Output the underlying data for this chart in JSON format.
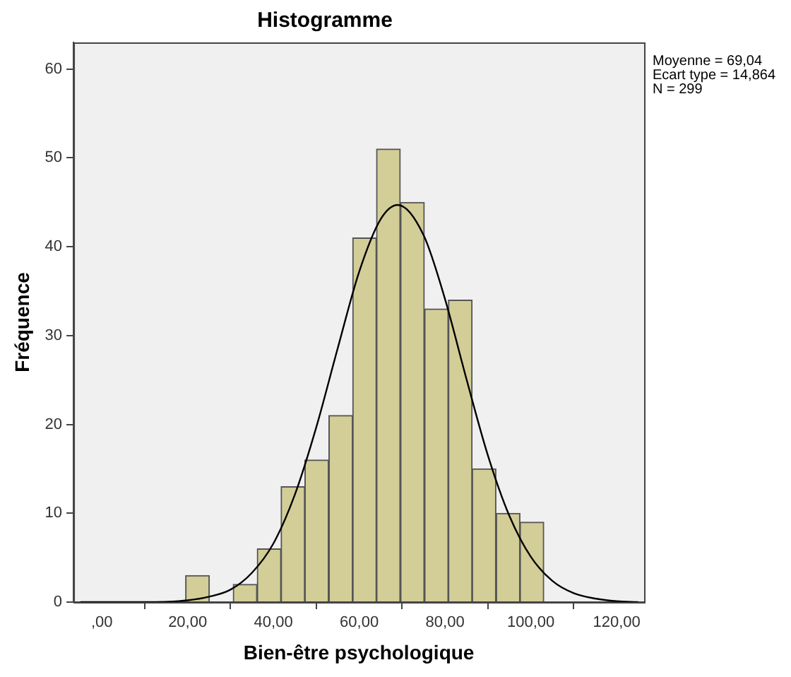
{
  "chart_data": {
    "type": "histogram",
    "title": "Histogramme",
    "xlabel": "Bien-être psychologique",
    "ylabel": "Fréquence",
    "bins": [
      19.5,
      25.1,
      30.6,
      36.2,
      41.8,
      47.3,
      52.9,
      58.5,
      64.0,
      69.6,
      75.2,
      80.8,
      86.3,
      91.9,
      97.5,
      103.0
    ],
    "values": [
      3,
      0,
      2,
      6,
      13,
      16,
      21,
      41,
      51,
      45,
      33,
      34,
      15,
      10,
      9
    ],
    "color": "#d3ce98",
    "series": [
      {
        "type": "line",
        "color": "#000000",
        "x": [
          -5,
          0,
          10,
          20,
          25,
          30,
          35,
          40,
          45,
          50,
          55,
          60,
          65,
          69,
          75,
          80,
          85,
          90,
          95,
          100,
          105,
          110,
          115,
          120,
          125
        ],
        "values": [
          0,
          0,
          0,
          0.2,
          0.6,
          1.4,
          3.3,
          6.6,
          12.1,
          19.7,
          28.6,
          37.2,
          43.1,
          44.7,
          41.3,
          34.1,
          25.1,
          16.5,
          9.7,
          5.1,
          2.4,
          1.0,
          0.4,
          0.1,
          0
        ]
      }
    ],
    "marker": "none",
    "xlim": [
      -6.6,
      126.4
    ],
    "xticks": [
      {
        "value": 0,
        "label": ",00"
      },
      {
        "value": 20,
        "label": "20,00"
      },
      {
        "value": 40,
        "label": "40,00"
      },
      {
        "value": 60,
        "label": "60,00"
      },
      {
        "value": 80,
        "label": "80,00"
      },
      {
        "value": 100,
        "label": "100,00"
      },
      {
        "value": 120,
        "label": "120,00"
      }
    ],
    "ylim": [
      0,
      63
    ],
    "yticks": [
      0,
      10,
      20,
      30,
      40,
      50,
      60
    ],
    "grid": false,
    "legend": false,
    "annotations": [
      "Moyenne = 69,04",
      "Ecart type = 14,864",
      "N = 299"
    ]
  }
}
